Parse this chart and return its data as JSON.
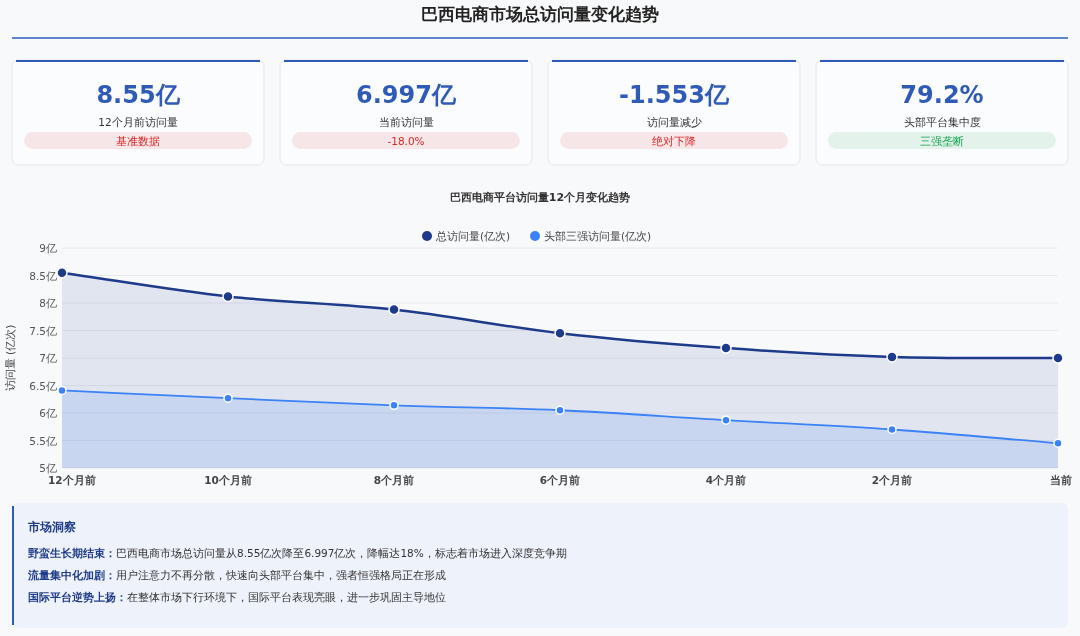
{
  "chart_data": [
    {
      "type": "other",
      "title": "巴西电商市场总访问量变化趋势",
      "annotations": [
        "8.55亿",
        "12个月前访问量",
        "基准数据",
        "6.997亿",
        "当前访问量",
        "-18.0%",
        "-1.553亿",
        "访问量减少",
        "绝对下降",
        "79.2%",
        "头部平台集中度",
        "三强垄断"
      ],
      "colors": [
        "#dc2626",
        "#dc2626",
        "#dc2626",
        "#16a34a"
      ]
    },
    {
      "type": "area",
      "title": "巴西电商平台访问量12个月变化趋势",
      "ylabel": "访问量 (亿次)",
      "categories": [
        "12个月前",
        "10个月前",
        "8个月前",
        "6个月前",
        "4个月前",
        "2个月前",
        "当前"
      ],
      "series": [
        {
          "name": "总访问量(亿次)",
          "color": "#1e3a8a",
          "values": [
            8.55,
            8.12,
            7.88,
            7.45,
            7.18,
            7.02,
            7.0
          ]
        },
        {
          "name": "头部三强访问量(亿次)",
          "color": "#3b82f6",
          "values": [
            6.41,
            6.27,
            6.14,
            6.05,
            5.87,
            5.7,
            5.45
          ]
        }
      ],
      "ylim": [
        5,
        9
      ],
      "yticks": [
        {
          "value": 5,
          "label": "5亿"
        },
        {
          "value": 5.5,
          "label": "5.5亿"
        },
        {
          "value": 6,
          "label": "6亿"
        },
        {
          "value": 6.5,
          "label": "6.5亿"
        },
        {
          "value": 7,
          "label": "7亿"
        },
        {
          "value": 7.5,
          "label": "7.5亿"
        },
        {
          "value": 8,
          "label": "8亿"
        },
        {
          "value": 8.5,
          "label": "8.5亿"
        },
        {
          "value": 9,
          "label": "9亿"
        }
      ],
      "grid": "y",
      "legend": "top",
      "marker": "circle",
      "line_style": "solid"
    },
    {
      "type": "other",
      "title": "市场洞察",
      "annotations": [
        "野蛮生长期结束：巴西电商市场总访问量从8.55亿次降至6.997亿次，降幅达18%，标志着市场进入深度竞争期",
        "流量集中化加剧：用户注意力不再分散，快速向头部平台集中，强者恒强格局正在形成",
        "国际平台逆势上扬：在整体市场下行环境下，国际平台表现亮眼，进一步巩固主导地位"
      ]
    }
  ]
}
